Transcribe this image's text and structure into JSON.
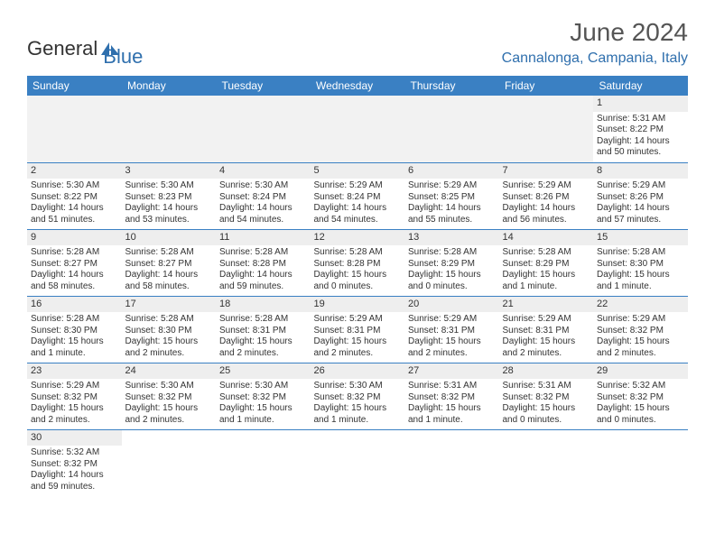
{
  "brand": {
    "name_part1": "General",
    "name_part2": "Blue",
    "icon_color": "#2f6fad",
    "text_color1": "#333333",
    "text_color2": "#2f6fad"
  },
  "title": "June 2024",
  "location": "Cannalonga, Campania, Italy",
  "header_bg": "#3a80c3",
  "header_fg": "#ffffff",
  "grid_line": "#3a80c3",
  "daybar_bg": "#eeeeee",
  "weekdays": [
    "Sunday",
    "Monday",
    "Tuesday",
    "Wednesday",
    "Thursday",
    "Friday",
    "Saturday"
  ],
  "weeks": [
    [
      null,
      null,
      null,
      null,
      null,
      null,
      {
        "n": "1",
        "sr": "Sunrise: 5:31 AM",
        "ss": "Sunset: 8:22 PM",
        "dl": "Daylight: 14 hours and 50 minutes."
      }
    ],
    [
      {
        "n": "2",
        "sr": "Sunrise: 5:30 AM",
        "ss": "Sunset: 8:22 PM",
        "dl": "Daylight: 14 hours and 51 minutes."
      },
      {
        "n": "3",
        "sr": "Sunrise: 5:30 AM",
        "ss": "Sunset: 8:23 PM",
        "dl": "Daylight: 14 hours and 53 minutes."
      },
      {
        "n": "4",
        "sr": "Sunrise: 5:30 AM",
        "ss": "Sunset: 8:24 PM",
        "dl": "Daylight: 14 hours and 54 minutes."
      },
      {
        "n": "5",
        "sr": "Sunrise: 5:29 AM",
        "ss": "Sunset: 8:24 PM",
        "dl": "Daylight: 14 hours and 54 minutes."
      },
      {
        "n": "6",
        "sr": "Sunrise: 5:29 AM",
        "ss": "Sunset: 8:25 PM",
        "dl": "Daylight: 14 hours and 55 minutes."
      },
      {
        "n": "7",
        "sr": "Sunrise: 5:29 AM",
        "ss": "Sunset: 8:26 PM",
        "dl": "Daylight: 14 hours and 56 minutes."
      },
      {
        "n": "8",
        "sr": "Sunrise: 5:29 AM",
        "ss": "Sunset: 8:26 PM",
        "dl": "Daylight: 14 hours and 57 minutes."
      }
    ],
    [
      {
        "n": "9",
        "sr": "Sunrise: 5:28 AM",
        "ss": "Sunset: 8:27 PM",
        "dl": "Daylight: 14 hours and 58 minutes."
      },
      {
        "n": "10",
        "sr": "Sunrise: 5:28 AM",
        "ss": "Sunset: 8:27 PM",
        "dl": "Daylight: 14 hours and 58 minutes."
      },
      {
        "n": "11",
        "sr": "Sunrise: 5:28 AM",
        "ss": "Sunset: 8:28 PM",
        "dl": "Daylight: 14 hours and 59 minutes."
      },
      {
        "n": "12",
        "sr": "Sunrise: 5:28 AM",
        "ss": "Sunset: 8:28 PM",
        "dl": "Daylight: 15 hours and 0 minutes."
      },
      {
        "n": "13",
        "sr": "Sunrise: 5:28 AM",
        "ss": "Sunset: 8:29 PM",
        "dl": "Daylight: 15 hours and 0 minutes."
      },
      {
        "n": "14",
        "sr": "Sunrise: 5:28 AM",
        "ss": "Sunset: 8:29 PM",
        "dl": "Daylight: 15 hours and 1 minute."
      },
      {
        "n": "15",
        "sr": "Sunrise: 5:28 AM",
        "ss": "Sunset: 8:30 PM",
        "dl": "Daylight: 15 hours and 1 minute."
      }
    ],
    [
      {
        "n": "16",
        "sr": "Sunrise: 5:28 AM",
        "ss": "Sunset: 8:30 PM",
        "dl": "Daylight: 15 hours and 1 minute."
      },
      {
        "n": "17",
        "sr": "Sunrise: 5:28 AM",
        "ss": "Sunset: 8:30 PM",
        "dl": "Daylight: 15 hours and 2 minutes."
      },
      {
        "n": "18",
        "sr": "Sunrise: 5:28 AM",
        "ss": "Sunset: 8:31 PM",
        "dl": "Daylight: 15 hours and 2 minutes."
      },
      {
        "n": "19",
        "sr": "Sunrise: 5:29 AM",
        "ss": "Sunset: 8:31 PM",
        "dl": "Daylight: 15 hours and 2 minutes."
      },
      {
        "n": "20",
        "sr": "Sunrise: 5:29 AM",
        "ss": "Sunset: 8:31 PM",
        "dl": "Daylight: 15 hours and 2 minutes."
      },
      {
        "n": "21",
        "sr": "Sunrise: 5:29 AM",
        "ss": "Sunset: 8:31 PM",
        "dl": "Daylight: 15 hours and 2 minutes."
      },
      {
        "n": "22",
        "sr": "Sunrise: 5:29 AM",
        "ss": "Sunset: 8:32 PM",
        "dl": "Daylight: 15 hours and 2 minutes."
      }
    ],
    [
      {
        "n": "23",
        "sr": "Sunrise: 5:29 AM",
        "ss": "Sunset: 8:32 PM",
        "dl": "Daylight: 15 hours and 2 minutes."
      },
      {
        "n": "24",
        "sr": "Sunrise: 5:30 AM",
        "ss": "Sunset: 8:32 PM",
        "dl": "Daylight: 15 hours and 2 minutes."
      },
      {
        "n": "25",
        "sr": "Sunrise: 5:30 AM",
        "ss": "Sunset: 8:32 PM",
        "dl": "Daylight: 15 hours and 1 minute."
      },
      {
        "n": "26",
        "sr": "Sunrise: 5:30 AM",
        "ss": "Sunset: 8:32 PM",
        "dl": "Daylight: 15 hours and 1 minute."
      },
      {
        "n": "27",
        "sr": "Sunrise: 5:31 AM",
        "ss": "Sunset: 8:32 PM",
        "dl": "Daylight: 15 hours and 1 minute."
      },
      {
        "n": "28",
        "sr": "Sunrise: 5:31 AM",
        "ss": "Sunset: 8:32 PM",
        "dl": "Daylight: 15 hours and 0 minutes."
      },
      {
        "n": "29",
        "sr": "Sunrise: 5:32 AM",
        "ss": "Sunset: 8:32 PM",
        "dl": "Daylight: 15 hours and 0 minutes."
      }
    ],
    [
      {
        "n": "30",
        "sr": "Sunrise: 5:32 AM",
        "ss": "Sunset: 8:32 PM",
        "dl": "Daylight: 14 hours and 59 minutes."
      },
      null,
      null,
      null,
      null,
      null,
      null
    ]
  ]
}
